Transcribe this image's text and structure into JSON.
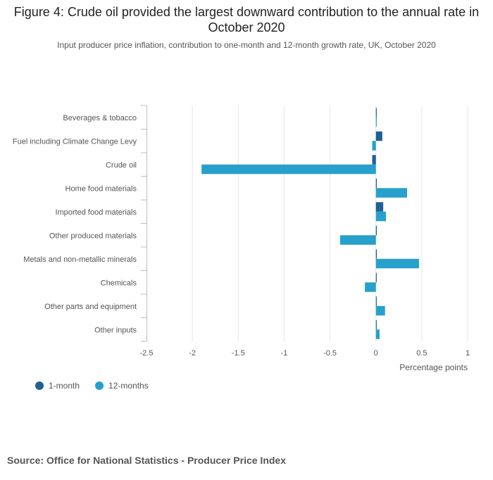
{
  "chart_data": {
    "type": "bar",
    "orientation": "horizontal",
    "title": "Figure 4: Crude oil provided the largest downward contribution to the annual rate in October 2020",
    "subtitle": "Input producer price inflation, contribution to one-month and 12-month growth rate, UK, October 2020",
    "categories": [
      "Beverages & tobacco",
      "Fuel including Climate Change Levy",
      "Crude oil",
      "Home food materials",
      "Imported food materials",
      "Other produced materials",
      "Metals and non-metallic minerals",
      "Chemicals",
      "Other parts and equipment",
      "Other inputs"
    ],
    "series": [
      {
        "name": "1-month",
        "color": "#206095",
        "values": [
          0.0,
          0.07,
          -0.04,
          0.01,
          0.08,
          0.01,
          0.01,
          0.005,
          0.0,
          0.0
        ]
      },
      {
        "name": "12-months",
        "color": "#27a0cc",
        "values": [
          0.005,
          -0.04,
          -1.9,
          0.34,
          0.11,
          -0.39,
          0.47,
          -0.12,
          0.1,
          0.04
        ]
      }
    ],
    "xlim": [
      -2.5,
      1
    ],
    "xticks": [
      -2.5,
      -2,
      -1.5,
      -1,
      -0.5,
      0,
      0.5,
      1
    ],
    "tick_labels": [
      "-2.5",
      "-2",
      "-1.5",
      "-1",
      "-0.5",
      "0",
      "0.5",
      "1"
    ],
    "xlabel": "Percentage points",
    "ylabel": "",
    "grid": true,
    "legend_position": "bottom-left"
  },
  "source": "Source: Office for National Statistics - Producer Price Index"
}
